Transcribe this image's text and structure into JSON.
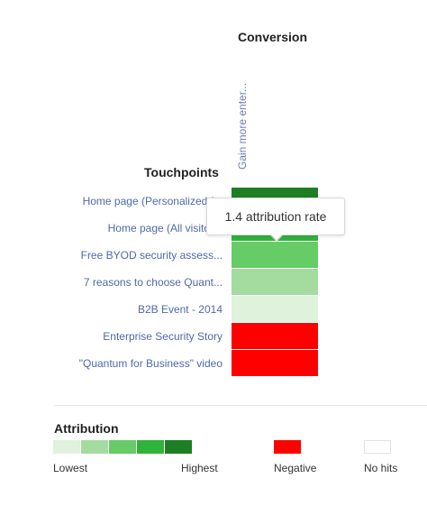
{
  "heatmap": {
    "title": "Conversion",
    "column_header": "Gain more enter...",
    "row_header": "Touchpoints",
    "rows": [
      {
        "label": "Home page (Personalized f...",
        "color": "#1e7e24"
      },
      {
        "label": "Home page (All visitors)",
        "color": "#30b33a"
      },
      {
        "label": "Free BYOD security assess...",
        "color": "#66cc66"
      },
      {
        "label": "7 reasons to choose Quant...",
        "color": "#a3dc9e"
      },
      {
        "label": "B2B Event - 2014",
        "color": "#def2dc"
      },
      {
        "label": "Enterprise Security Story",
        "color": "#ff0000"
      },
      {
        "label": "\"Quantum for Business\" video",
        "color": "#ff0000"
      }
    ]
  },
  "tooltip": {
    "text": "1.4 attribution rate"
  },
  "legend": {
    "title": "Attribution",
    "scale_colors": [
      "#def2dc",
      "#a3dc9e",
      "#66cc66",
      "#30b33a",
      "#1e7e24"
    ],
    "lowest_label": "Lowest",
    "highest_label": "Highest",
    "negative_label": "Negative",
    "negative_color": "#ff0000",
    "nohits_label": "No hits",
    "nohits_color": "#ffffff"
  }
}
